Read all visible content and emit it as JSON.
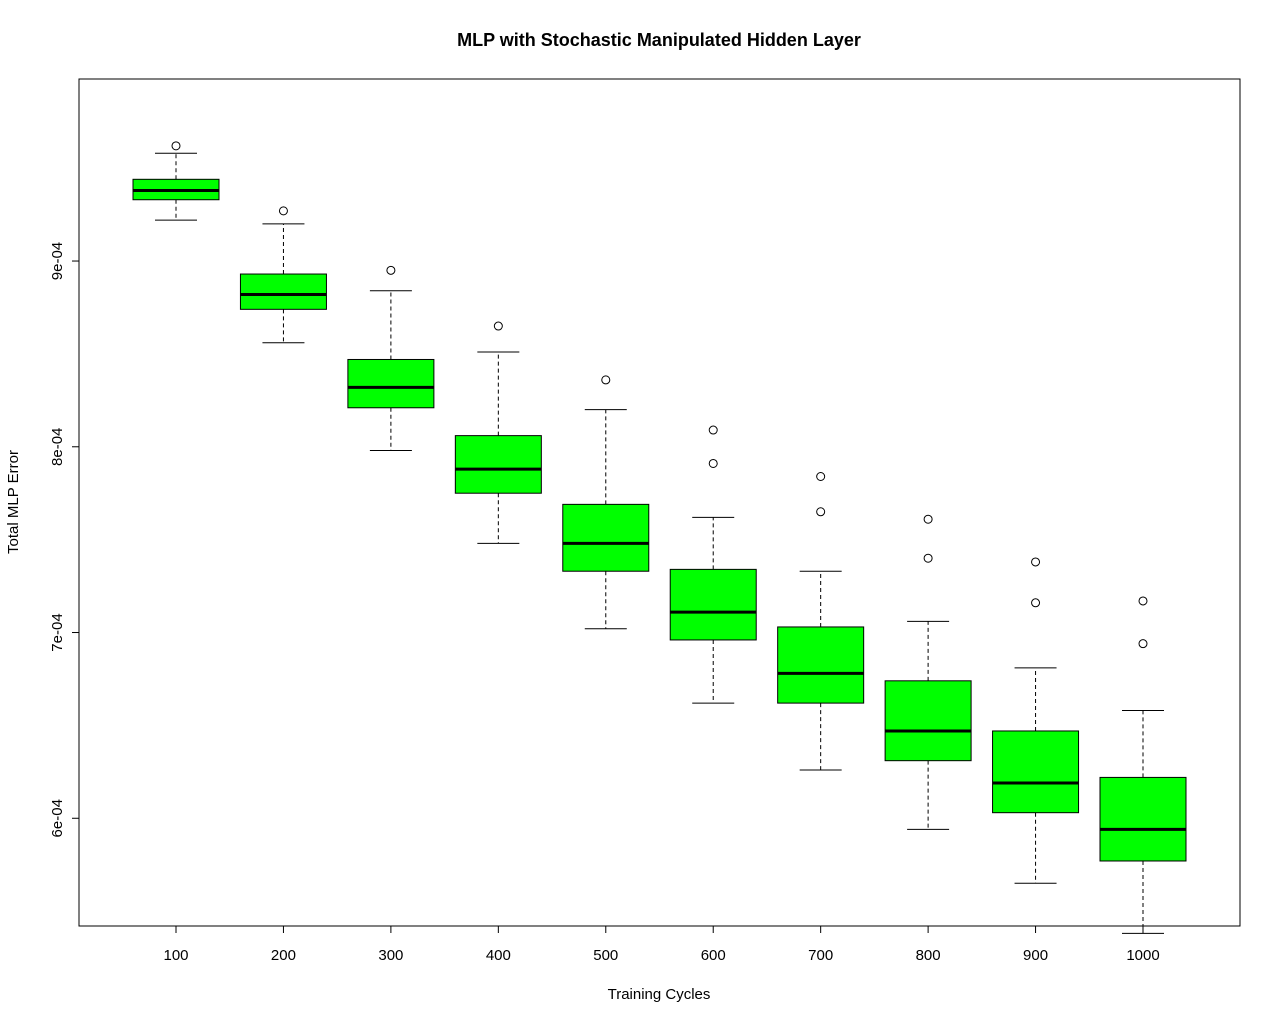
{
  "chart_data": {
    "type": "boxplot",
    "title": "MLP with Stochastic Manipulated Hidden Layer",
    "xlabel": "Training Cycles",
    "ylabel": "Total MLP Error",
    "y_tick_values": [
      0.0006,
      0.0007,
      0.0008,
      0.0009
    ],
    "y_tick_labels": [
      "6e-04",
      "7e-04",
      "8e-04",
      "9e-04"
    ],
    "ylim": [
      0.000542,
      0.000998
    ],
    "grid": false,
    "legend": "none",
    "box_color": "#00ff00",
    "outline_color": "#000000",
    "categories": [
      "100",
      "200",
      "300",
      "400",
      "500",
      "600",
      "700",
      "800",
      "900",
      "1000"
    ],
    "boxes": [
      {
        "whisker_low": 0.000922,
        "q1": 0.000933,
        "median": 0.000938,
        "q3": 0.000944,
        "whisker_high": 0.000958,
        "outliers": [
          0.000962
        ]
      },
      {
        "whisker_low": 0.000856,
        "q1": 0.000874,
        "median": 0.000882,
        "q3": 0.000893,
        "whisker_high": 0.00092,
        "outliers": [
          0.000927
        ]
      },
      {
        "whisker_low": 0.000798,
        "q1": 0.000821,
        "median": 0.000832,
        "q3": 0.000847,
        "whisker_high": 0.000884,
        "outliers": [
          0.000895
        ]
      },
      {
        "whisker_low": 0.000748,
        "q1": 0.000775,
        "median": 0.000788,
        "q3": 0.000806,
        "whisker_high": 0.000851,
        "outliers": [
          0.000865
        ]
      },
      {
        "whisker_low": 0.000702,
        "q1": 0.000733,
        "median": 0.000748,
        "q3": 0.000769,
        "whisker_high": 0.00082,
        "outliers": [
          0.000836
        ]
      },
      {
        "whisker_low": 0.000662,
        "q1": 0.000696,
        "median": 0.000711,
        "q3": 0.000734,
        "whisker_high": 0.000762,
        "outliers": [
          0.000791,
          0.000809
        ]
      },
      {
        "whisker_low": 0.000626,
        "q1": 0.000662,
        "median": 0.000678,
        "q3": 0.000703,
        "whisker_high": 0.000733,
        "outliers": [
          0.000765,
          0.000784
        ]
      },
      {
        "whisker_low": 0.000594,
        "q1": 0.000631,
        "median": 0.000647,
        "q3": 0.000674,
        "whisker_high": 0.000706,
        "outliers": [
          0.00074,
          0.000761
        ]
      },
      {
        "whisker_low": 0.000565,
        "q1": 0.000603,
        "median": 0.000619,
        "q3": 0.000647,
        "whisker_high": 0.000681,
        "outliers": [
          0.000716,
          0.000738
        ]
      },
      {
        "whisker_low": 0.000538,
        "q1": 0.000577,
        "median": 0.000594,
        "q3": 0.000622,
        "whisker_high": 0.000658,
        "outliers": [
          0.000694,
          0.000717
        ]
      }
    ]
  }
}
